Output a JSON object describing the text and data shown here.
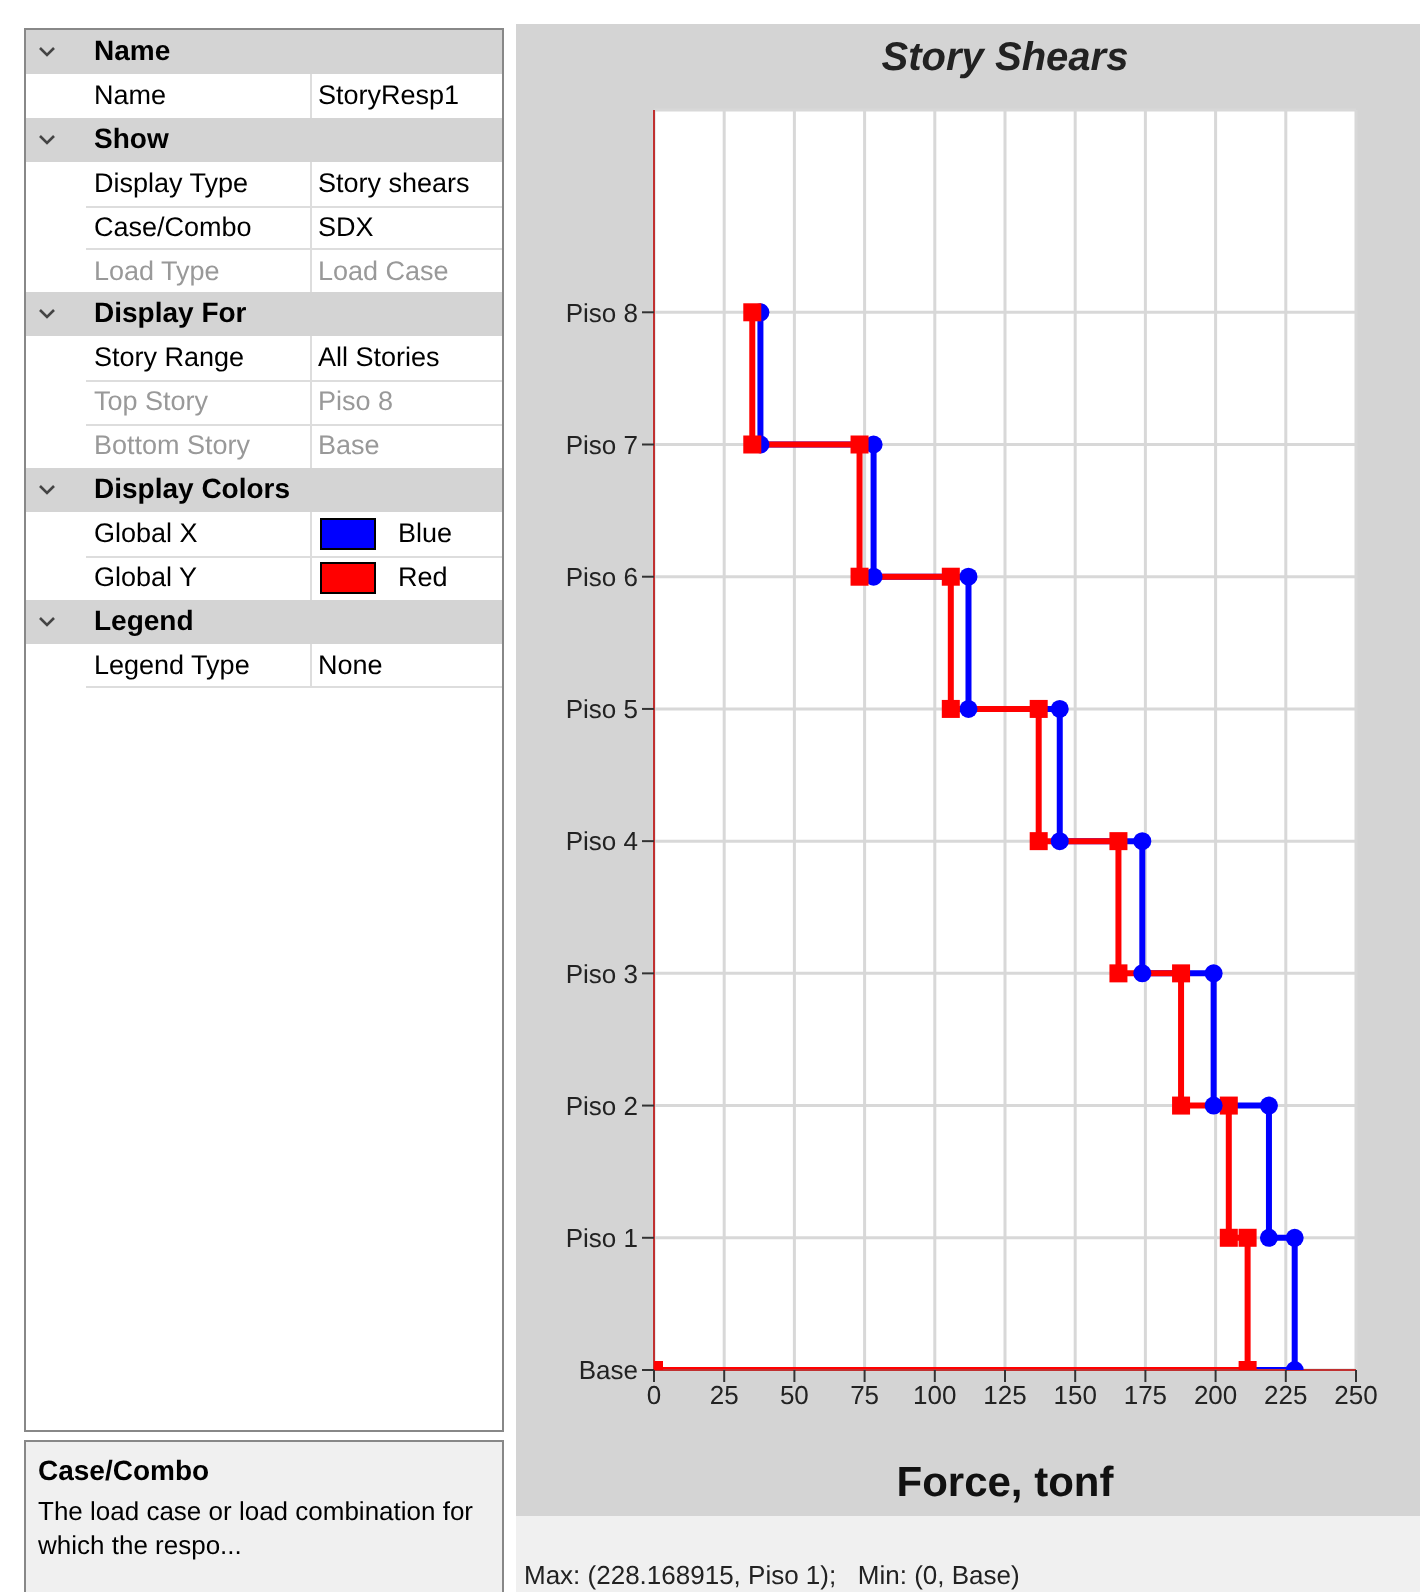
{
  "chart_data": [
    {
      "type": "other",
      "annotations": [
        "Name",
        "Name",
        "StoryResp1",
        "Show",
        "Display Type",
        "Story shears",
        "Case/Combo",
        "SDX",
        "Load Type",
        "Load Case",
        "Display For",
        "Story Range",
        "All Stories",
        "Top Story",
        "Piso 8",
        "Bottom Story",
        "Base",
        "Display Colors",
        "Global X",
        "Blue",
        "Global Y",
        "Red",
        "Legend",
        "Legend Type",
        "None",
        "Case/Combo",
        "The load case or load combination for which the respo..."
      ]
    },
    {
      "type": "step",
      "orientation": "horizontal",
      "title": "Story Shears",
      "xlabel": "Force, tonf",
      "categories": [
        "Piso 8",
        "Piso 7",
        "Piso 6",
        "Piso 5",
        "Piso 4",
        "Piso 3",
        "Piso 2",
        "Piso 1",
        "Base"
      ],
      "series": [
        {
          "color": "#0000ff",
          "marker": "circle",
          "values": [
            37.9,
            78.2,
            112,
            144.5,
            173.9,
            199.3,
            219,
            228.168915,
            0
          ]
        },
        {
          "color": "#ff0000",
          "marker": "square",
          "values": [
            35,
            73.2,
            105.7,
            137,
            165.4,
            187.7,
            204.7,
            211.4,
            0
          ]
        },
        {
          "type": "scatter",
          "color": "#0000ff",
          "marker": "circle",
          "values": [
            null,
            37.9,
            78.2,
            112,
            144.5,
            173.9,
            199.3,
            219,
            228.168915
          ]
        },
        {
          "type": "scatter",
          "color": "#ff0000",
          "marker": "square",
          "values": [
            null,
            35,
            73.2,
            105.7,
            137,
            165.4,
            187.7,
            204.7,
            211.4
          ]
        }
      ],
      "xlim": [
        0,
        250
      ],
      "xticks": [
        0,
        25,
        50,
        75,
        100,
        125,
        150,
        175,
        200,
        225,
        250
      ],
      "grid": true,
      "annotations": [
        "Max: (228.168915, Piso 1);   Min: (0, Base)"
      ]
    }
  ]
}
